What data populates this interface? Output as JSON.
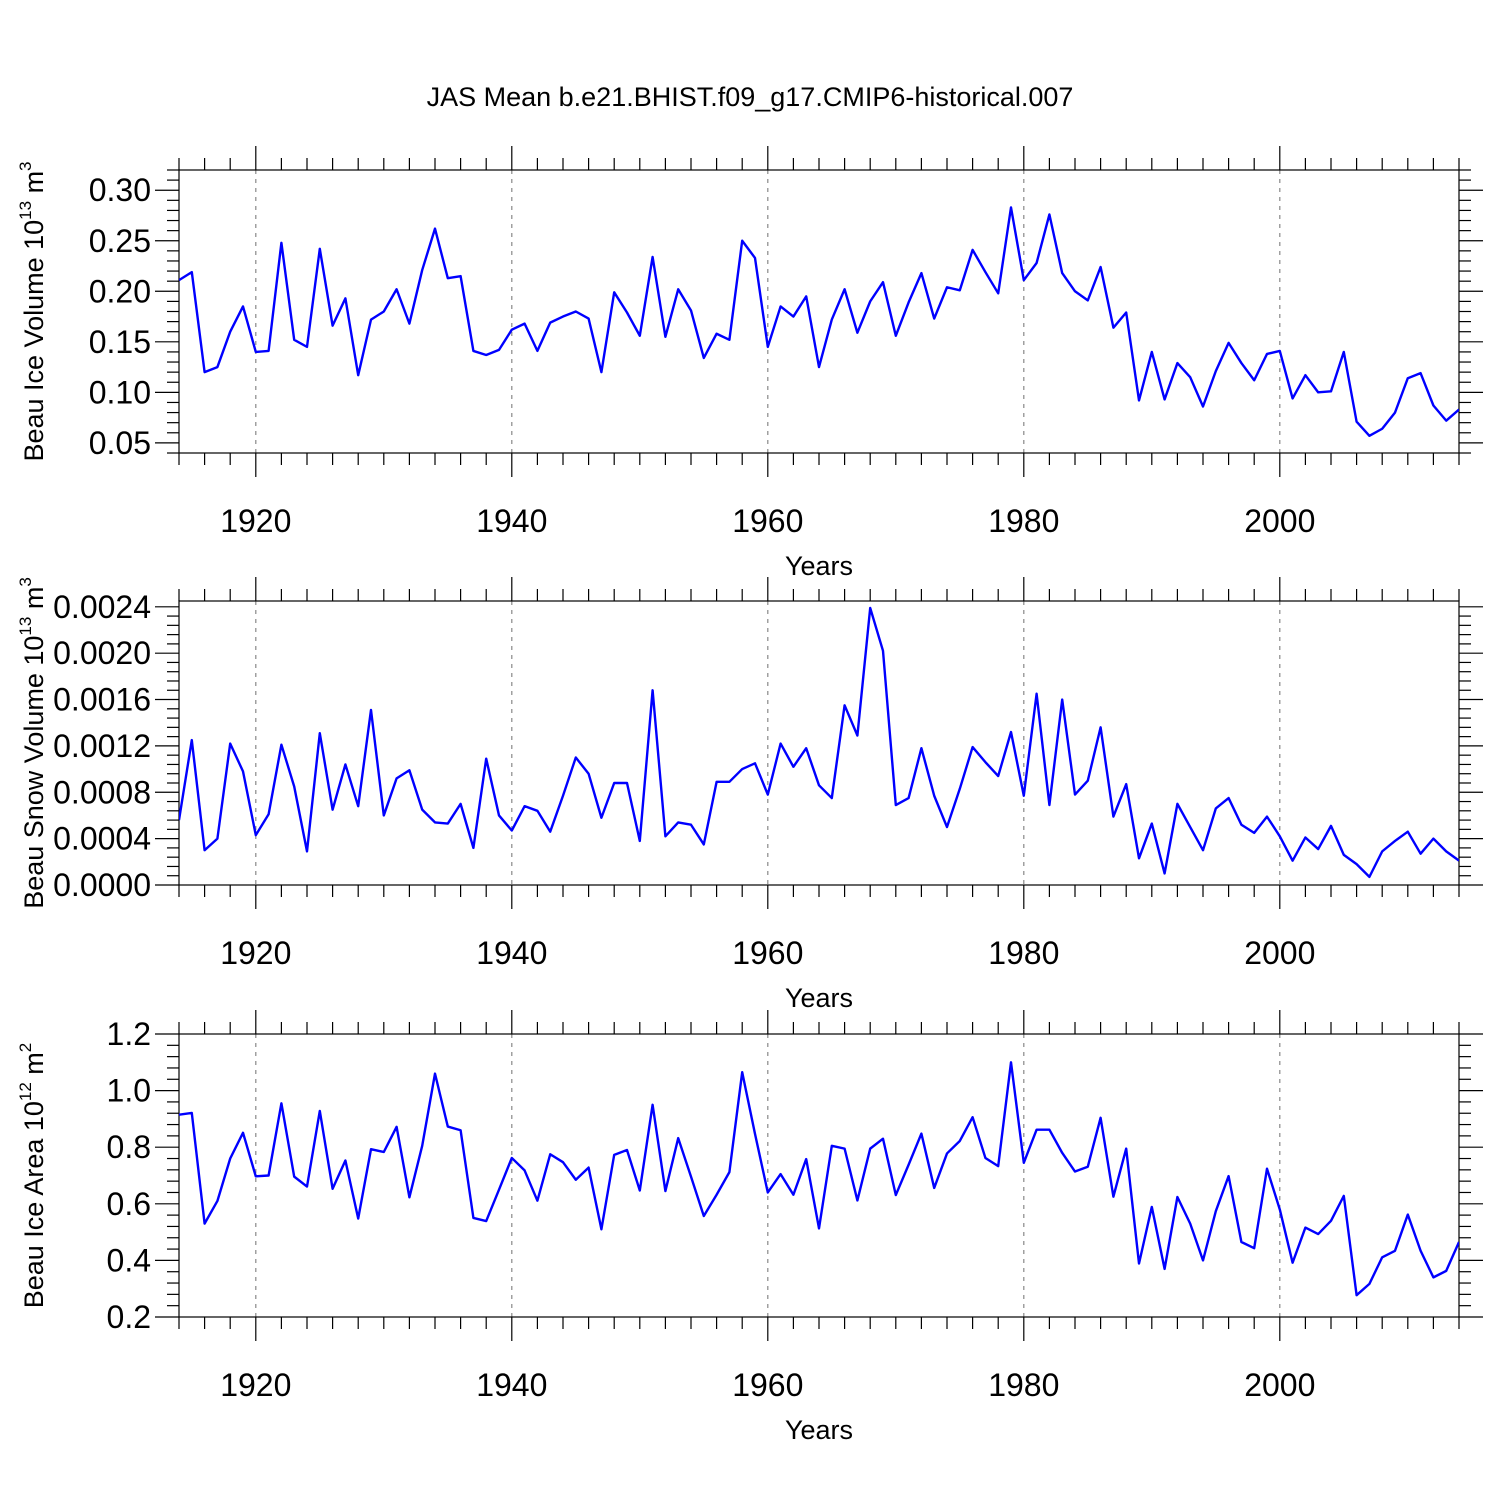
{
  "title": "JAS Mean b.e21.BHIST.f09_g17.CMIP6-historical.007",
  "chart_data": [
    {
      "type": "line",
      "ylabel_main": "Beau Ice Volume 10",
      "ylabel_exp": "13",
      "ylabel_unit": " m",
      "ylabel_unit_exp": "3",
      "xlabel": "Years",
      "xlim": [
        1914,
        2014
      ],
      "ylim": [
        0.04,
        0.32
      ],
      "xticks": [
        1920,
        1940,
        1960,
        1980,
        2000
      ],
      "yticks": [
        0.05,
        0.1,
        0.15,
        0.2,
        0.25,
        0.3
      ],
      "ytick_labels": [
        "0.05",
        "0.10",
        "0.15",
        "0.20",
        "0.25",
        "0.30"
      ],
      "color": "#0000ff",
      "x_start": 1914,
      "values": [
        0.211,
        0.219,
        0.12,
        0.125,
        0.16,
        0.185,
        0.14,
        0.141,
        0.248,
        0.152,
        0.145,
        0.242,
        0.166,
        0.193,
        0.117,
        0.172,
        0.18,
        0.202,
        0.168,
        0.221,
        0.262,
        0.213,
        0.215,
        0.141,
        0.137,
        0.142,
        0.162,
        0.168,
        0.141,
        0.169,
        0.175,
        0.18,
        0.173,
        0.12,
        0.199,
        0.179,
        0.156,
        0.234,
        0.155,
        0.202,
        0.181,
        0.134,
        0.158,
        0.152,
        0.25,
        0.233,
        0.145,
        0.185,
        0.175,
        0.195,
        0.125,
        0.172,
        0.202,
        0.159,
        0.19,
        0.209,
        0.156,
        0.189,
        0.218,
        0.173,
        0.204,
        0.201,
        0.241,
        0.219,
        0.198,
        0.283,
        0.211,
        0.228,
        0.276,
        0.218,
        0.2,
        0.191,
        0.224,
        0.164,
        0.179,
        0.092,
        0.14,
        0.093,
        0.129,
        0.115,
        0.086,
        0.121,
        0.149,
        0.129,
        0.112,
        0.138,
        0.141,
        0.094,
        0.117,
        0.1,
        0.101,
        0.14,
        0.071,
        0.057,
        0.064,
        0.08,
        0.114,
        0.119,
        0.087,
        0.072,
        0.083
      ]
    },
    {
      "type": "line",
      "ylabel_main": "Beau Snow Volume 10",
      "ylabel_exp": "13",
      "ylabel_unit": " m",
      "ylabel_unit_exp": "3",
      "xlabel": "Years",
      "xlim": [
        1914,
        2014
      ],
      "ylim": [
        0.0,
        0.00245
      ],
      "xticks": [
        1920,
        1940,
        1960,
        1980,
        2000
      ],
      "yticks": [
        0.0,
        0.0004,
        0.0008,
        0.0012,
        0.0016,
        0.002,
        0.0024
      ],
      "ytick_labels": [
        "0.0000",
        "0.0004",
        "0.0008",
        "0.0012",
        "0.0016",
        "0.0020",
        "0.0024"
      ],
      "color": "#0000ff",
      "x_start": 1914,
      "values": [
        0.00056,
        0.00125,
        0.0003,
        0.0004,
        0.00122,
        0.00098,
        0.00043,
        0.00061,
        0.00121,
        0.00085,
        0.00029,
        0.00131,
        0.00065,
        0.00104,
        0.00068,
        0.00151,
        0.0006,
        0.00092,
        0.00099,
        0.00065,
        0.00054,
        0.00053,
        0.0007,
        0.00032,
        0.00109,
        0.0006,
        0.00047,
        0.00068,
        0.00064,
        0.00046,
        0.00077,
        0.0011,
        0.00096,
        0.00058,
        0.00088,
        0.00088,
        0.00038,
        0.00168,
        0.00042,
        0.00054,
        0.00052,
        0.00035,
        0.00089,
        0.00089,
        0.001,
        0.00105,
        0.00078,
        0.00122,
        0.00102,
        0.00118,
        0.00086,
        0.00075,
        0.00155,
        0.00129,
        0.00239,
        0.00202,
        0.00069,
        0.00075,
        0.00118,
        0.00077,
        0.0005,
        0.00083,
        0.00119,
        0.00106,
        0.00094,
        0.00132,
        0.00077,
        0.00165,
        0.00069,
        0.0016,
        0.00078,
        0.0009,
        0.00136,
        0.00059,
        0.00087,
        0.00023,
        0.00053,
        0.0001,
        0.0007,
        0.0005,
        0.0003,
        0.00066,
        0.00075,
        0.00052,
        0.00045,
        0.00059,
        0.00042,
        0.00021,
        0.00041,
        0.00031,
        0.00051,
        0.00026,
        0.00018,
        7e-05,
        0.00029,
        0.00038,
        0.00046,
        0.00027,
        0.0004,
        0.00029,
        0.00021
      ]
    },
    {
      "type": "line",
      "ylabel_main": "Beau Ice Area 10",
      "ylabel_exp": "12",
      "ylabel_unit": " m",
      "ylabel_unit_exp": "2",
      "xlabel": "Years",
      "xlim": [
        1914,
        2014
      ],
      "ylim": [
        0.2,
        1.2
      ],
      "xticks": [
        1920,
        1940,
        1960,
        1980,
        2000
      ],
      "yticks": [
        0.2,
        0.4,
        0.6,
        0.8,
        1.0,
        1.2
      ],
      "ytick_labels": [
        "0.2",
        "0.4",
        "0.6",
        "0.8",
        "1.0",
        "1.2"
      ],
      "color": "#0000ff",
      "x_start": 1914,
      "values": [
        0.915,
        0.921,
        0.53,
        0.61,
        0.76,
        0.851,
        0.697,
        0.7,
        0.955,
        0.696,
        0.661,
        0.928,
        0.653,
        0.753,
        0.548,
        0.793,
        0.783,
        0.872,
        0.623,
        0.805,
        1.06,
        0.873,
        0.86,
        0.55,
        0.539,
        0.65,
        0.762,
        0.718,
        0.611,
        0.775,
        0.747,
        0.685,
        0.728,
        0.51,
        0.773,
        0.79,
        0.647,
        0.95,
        0.645,
        0.832,
        0.696,
        0.557,
        0.632,
        0.712,
        1.065,
        0.847,
        0.64,
        0.705,
        0.632,
        0.758,
        0.513,
        0.805,
        0.795,
        0.612,
        0.795,
        0.83,
        0.631,
        0.738,
        0.848,
        0.656,
        0.778,
        0.822,
        0.906,
        0.762,
        0.733,
        1.1,
        0.745,
        0.862,
        0.862,
        0.78,
        0.714,
        0.731,
        0.904,
        0.625,
        0.795,
        0.389,
        0.589,
        0.37,
        0.624,
        0.53,
        0.4,
        0.574,
        0.698,
        0.465,
        0.443,
        0.724,
        0.58,
        0.392,
        0.516,
        0.493,
        0.54,
        0.628,
        0.277,
        0.317,
        0.411,
        0.434,
        0.562,
        0.434,
        0.34,
        0.363,
        0.465
      ]
    }
  ]
}
